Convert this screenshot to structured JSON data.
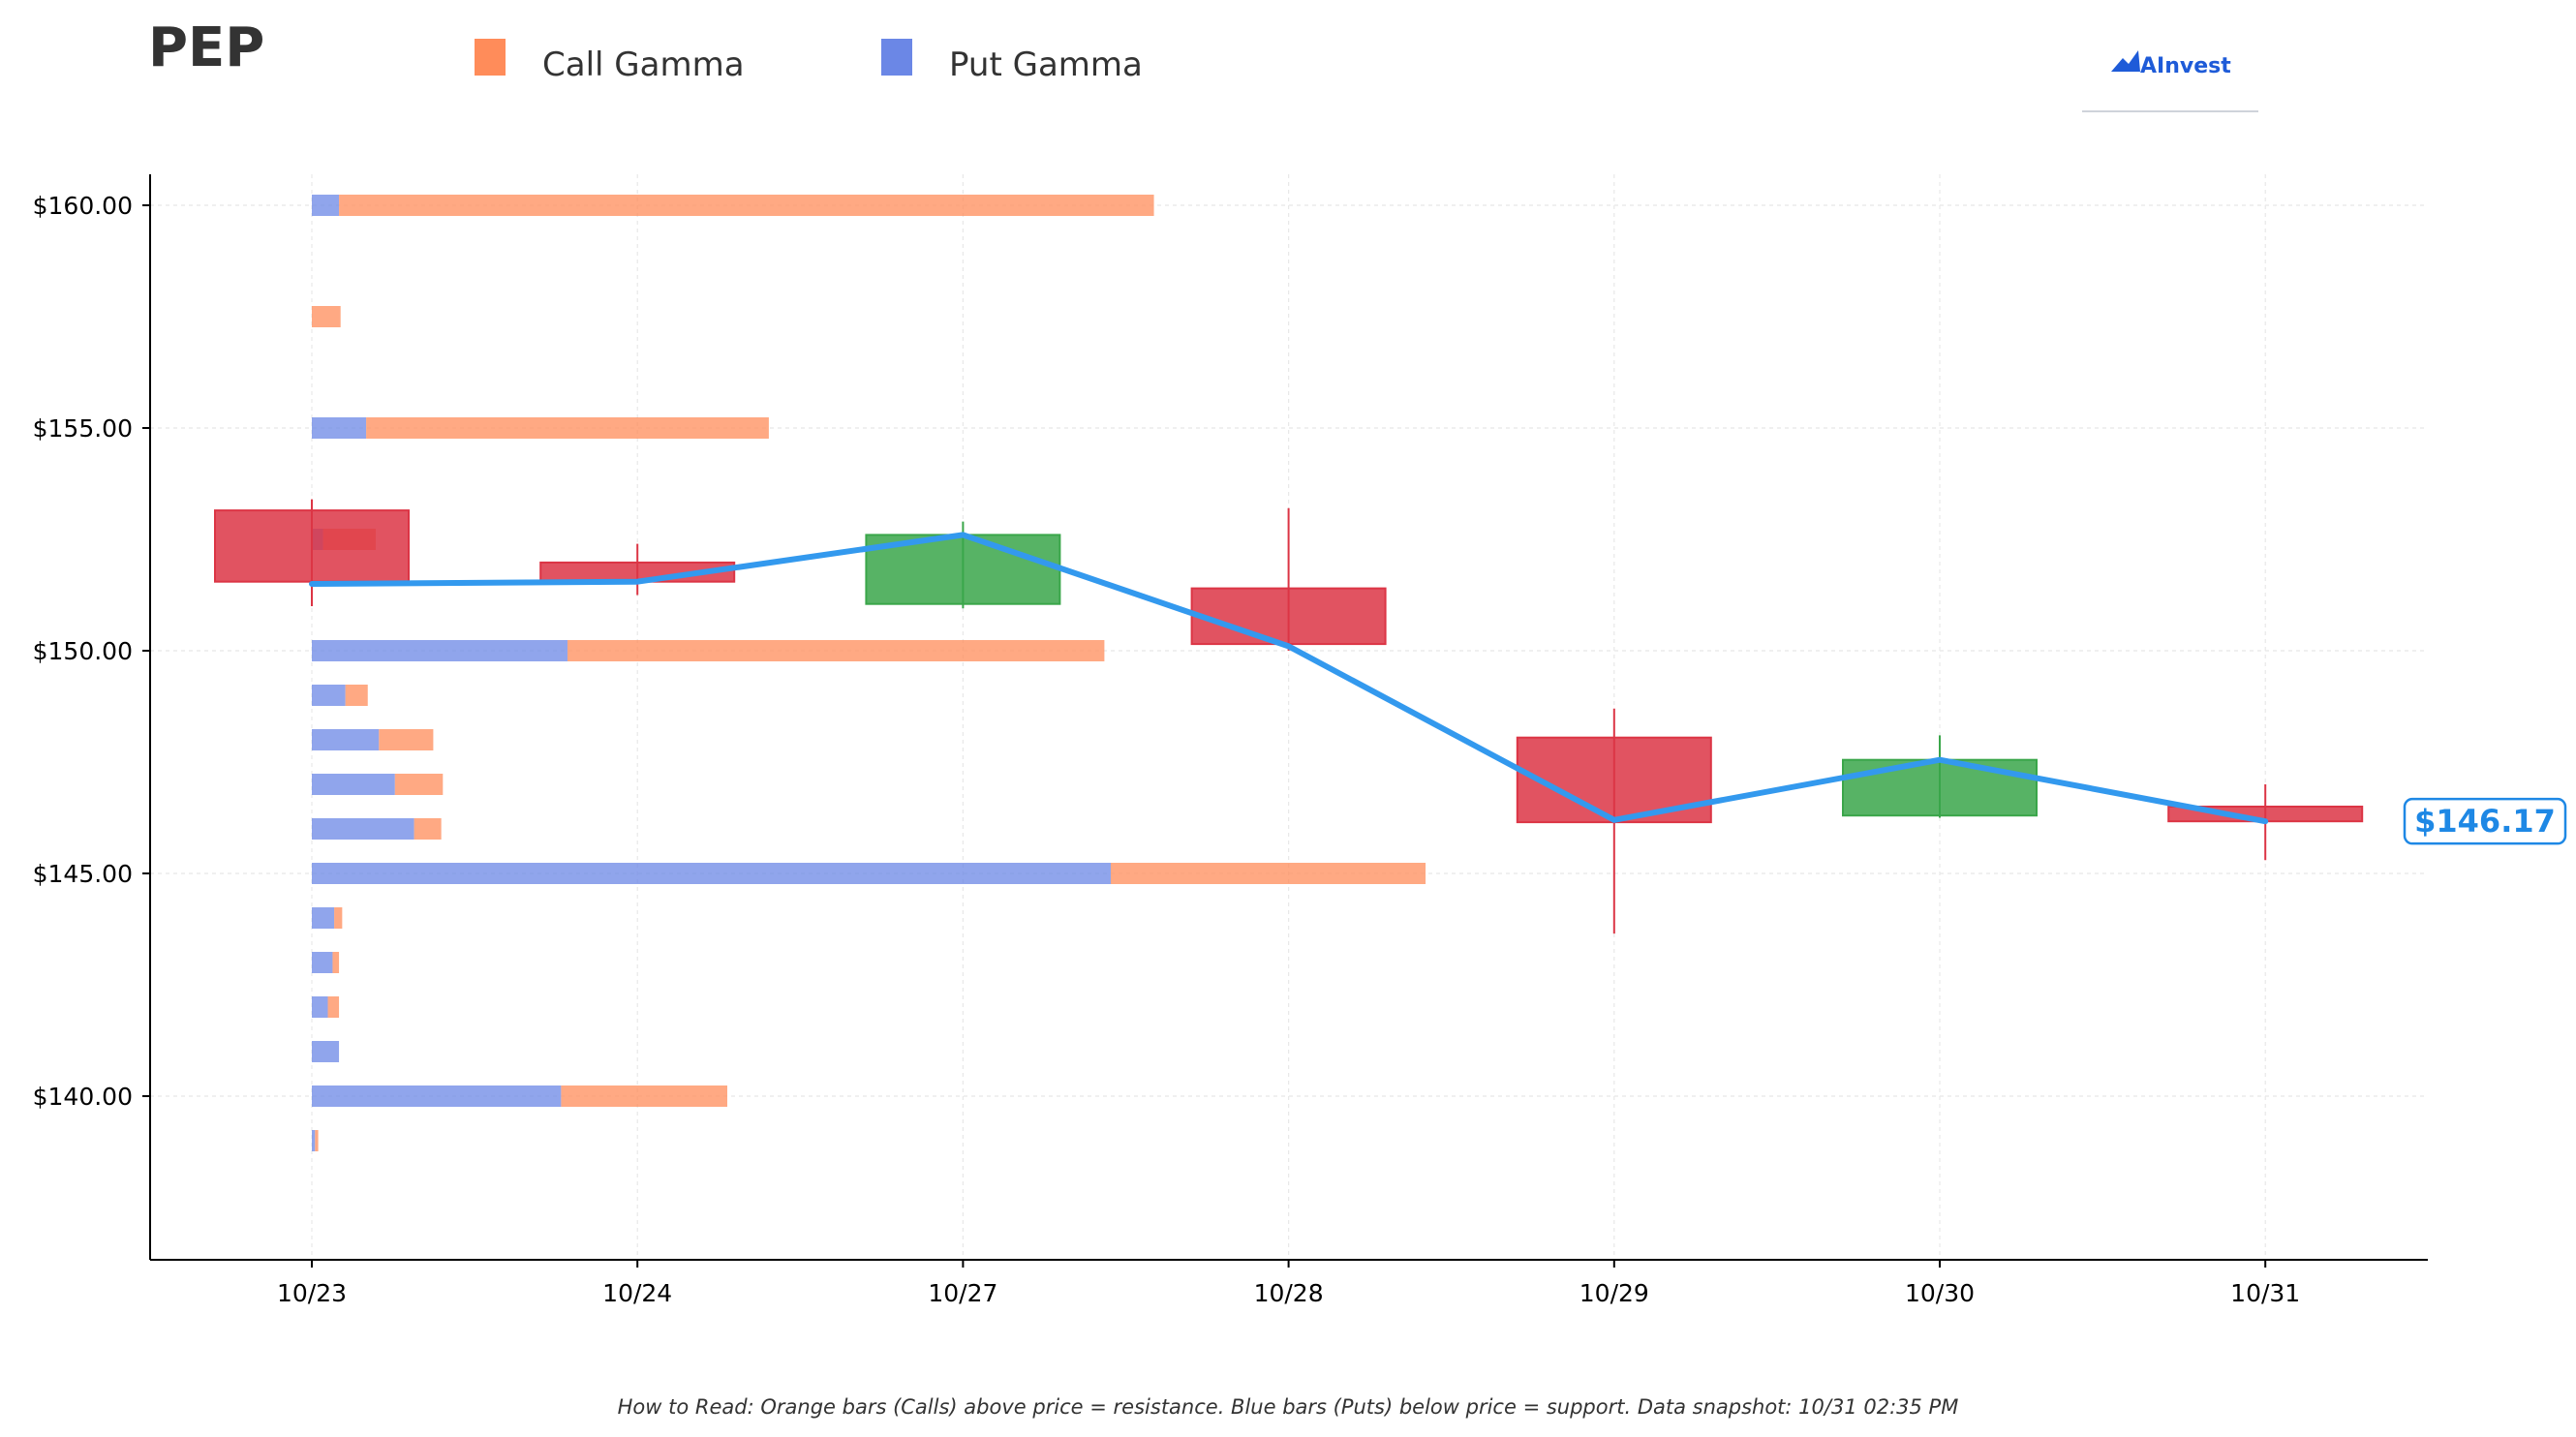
{
  "header": {
    "ticker": "PEP",
    "brand": "AInvest"
  },
  "footer": {
    "note": "How to Read: Orange bars (Calls) above price = resistance. Blue bars (Puts) below price = support. Data snapshot: 10/31 02:35 PM"
  },
  "colors": {
    "call": "#ff8c5a",
    "put": "#6b87e6",
    "up": "#3aa64a",
    "down": "#dc3545",
    "price_line": "#3399ee",
    "grid": "#e8e8e8",
    "axis": "#000000"
  },
  "chart_data": {
    "type": "candlestick+bar",
    "legend": [
      "Call Gamma",
      "Put Gamma"
    ],
    "legend_position": "top",
    "categories": [
      "10/23",
      "10/24",
      "10/27",
      "10/28",
      "10/29",
      "10/30",
      "10/31"
    ],
    "ylim": [
      136.5,
      160.7
    ],
    "yticks": [
      140,
      145,
      150,
      155,
      160
    ],
    "ytick_labels": [
      "$140.00",
      "$145.00",
      "$150.00",
      "$155.00",
      "$160.00"
    ],
    "grid": true,
    "candles": [
      {
        "date": "10/23",
        "open": 153.15,
        "high": 153.4,
        "low": 151.0,
        "close": 151.55
      },
      {
        "date": "10/24",
        "open": 151.98,
        "high": 152.4,
        "low": 151.25,
        "close": 151.55
      },
      {
        "date": "10/27",
        "open": 151.05,
        "high": 152.9,
        "low": 150.95,
        "close": 152.6
      },
      {
        "date": "10/28",
        "open": 151.4,
        "high": 153.2,
        "low": 150.0,
        "close": 150.15
      },
      {
        "date": "10/29",
        "open": 148.05,
        "high": 148.7,
        "low": 143.65,
        "close": 146.15
      },
      {
        "date": "10/30",
        "open": 146.3,
        "high": 148.1,
        "low": 146.25,
        "close": 147.55
      },
      {
        "date": "10/31",
        "open": 146.5,
        "high": 147.0,
        "low": 145.3,
        "close": 146.17
      }
    ],
    "price_line": [
      151.5,
      151.55,
      152.6,
      150.1,
      146.2,
      147.55,
      146.17
    ],
    "last_price_label": "$146.17",
    "gamma_bars": [
      {
        "strike": 160.0,
        "put": 0.085,
        "call": 2.55
      },
      {
        "strike": 157.5,
        "put": 0.0,
        "call": 0.09
      },
      {
        "strike": 155.0,
        "put": 0.17,
        "call": 1.26
      },
      {
        "strike": 152.5,
        "put": 0.035,
        "call": 0.165
      },
      {
        "strike": 150.0,
        "put": 0.8,
        "call": 1.68
      },
      {
        "strike": 149.0,
        "put": 0.105,
        "call": 0.07
      },
      {
        "strike": 148.0,
        "put": 0.21,
        "call": 0.17
      },
      {
        "strike": 147.0,
        "put": 0.26,
        "call": 0.15
      },
      {
        "strike": 146.0,
        "put": 0.32,
        "call": 0.085
      },
      {
        "strike": 145.0,
        "put": 2.5,
        "call": 0.985
      },
      {
        "strike": 144.0,
        "put": 0.07,
        "call": 0.025
      },
      {
        "strike": 143.0,
        "put": 0.065,
        "call": 0.02
      },
      {
        "strike": 142.0,
        "put": 0.05,
        "call": 0.035
      },
      {
        "strike": 141.0,
        "put": 0.085,
        "call": 0.0
      },
      {
        "strike": 140.0,
        "put": 0.78,
        "call": 0.52
      },
      {
        "strike": 139.0,
        "put": 0.01,
        "call": 0.01
      }
    ]
  }
}
